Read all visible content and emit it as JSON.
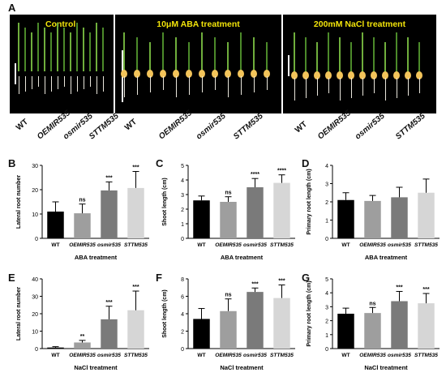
{
  "figure": {
    "panel_letters": [
      "A",
      "B",
      "C",
      "D",
      "E",
      "F",
      "G"
    ],
    "photo_titles": [
      "Control",
      "10μM ABA treatment",
      "200mM NaCl treatment"
    ],
    "genotypes": [
      "WT",
      "OEMIR535",
      "osmir535",
      "STTM535"
    ]
  },
  "colors": {
    "WT": "#000000",
    "OEMIR535": "#9e9e9e",
    "osmir535": "#7a7a7a",
    "STTM535": "#d6d6d6",
    "photo_title": "#f2e40a"
  },
  "chart_data": [
    {
      "panel": "B",
      "type": "bar",
      "categories": [
        "WT",
        "OEMIR535",
        "osmir535",
        "STTM535"
      ],
      "values": [
        11,
        10.3,
        19.7,
        20.7
      ],
      "errors": [
        4,
        3.8,
        3.5,
        6.8
      ],
      "significance": [
        "",
        "ns",
        "***",
        "***"
      ],
      "ylabel": "Lateral root number",
      "xlabel": "ABA treatment",
      "ylim": [
        0,
        30
      ],
      "yticks": [
        0,
        10,
        20,
        30
      ]
    },
    {
      "panel": "C",
      "type": "bar",
      "categories": [
        "WT",
        "OEMIR535",
        "osmir535",
        "STTM535"
      ],
      "values": [
        2.6,
        2.5,
        3.5,
        3.8
      ],
      "errors": [
        0.3,
        0.35,
        0.6,
        0.55
      ],
      "significance": [
        "",
        "ns",
        "****",
        "****"
      ],
      "ylabel": "Shoot length (cm)",
      "xlabel": "ABA treatment",
      "ylim": [
        0,
        5
      ],
      "yticks": [
        0,
        1,
        2,
        3,
        4,
        5
      ]
    },
    {
      "panel": "D",
      "type": "bar",
      "categories": [
        "WT",
        "OEMIR535",
        "osmir535",
        "STTM535"
      ],
      "values": [
        2.1,
        2.05,
        2.25,
        2.5
      ],
      "errors": [
        0.4,
        0.3,
        0.55,
        0.75
      ],
      "significance": [
        "",
        "",
        "",
        ""
      ],
      "ylabel": "Primary root length (cm)",
      "xlabel": "ABA treatment",
      "ylim": [
        0,
        4
      ],
      "yticks": [
        0,
        1,
        2,
        3,
        4
      ]
    },
    {
      "panel": "E",
      "type": "bar",
      "categories": [
        "WT",
        "OEMIR535",
        "osmir535",
        "STTM535"
      ],
      "values": [
        0.6,
        3.5,
        16.8,
        22
      ],
      "errors": [
        0.5,
        1.2,
        7.5,
        11
      ],
      "significance": [
        "",
        "**",
        "***",
        "***"
      ],
      "ylabel": "Lateral root number",
      "xlabel": "NaCl treatment",
      "ylim": [
        0,
        40
      ],
      "yticks": [
        0,
        10,
        20,
        30,
        40
      ]
    },
    {
      "panel": "F",
      "type": "bar",
      "categories": [
        "WT",
        "OEMIR535",
        "osmir535",
        "STTM535"
      ],
      "values": [
        3.4,
        4.3,
        6.5,
        5.8
      ],
      "errors": [
        1.2,
        1.4,
        0.45,
        1.5
      ],
      "significance": [
        "",
        "ns",
        "***",
        "***"
      ],
      "ylabel": "Shoot length (cm)",
      "xlabel": "NaCl treatment",
      "ylim": [
        0,
        8
      ],
      "yticks": [
        0,
        2,
        4,
        6,
        8
      ]
    },
    {
      "panel": "G",
      "type": "bar",
      "categories": [
        "WT",
        "OEMIR535",
        "osmir535",
        "STTM535"
      ],
      "values": [
        2.5,
        2.55,
        3.4,
        3.25
      ],
      "errors": [
        0.4,
        0.4,
        0.7,
        0.7
      ],
      "significance": [
        "",
        "ns",
        "***",
        "***"
      ],
      "ylabel": "Primary root length (cm)",
      "xlabel": "NaCl treatment",
      "ylim": [
        0,
        5
      ],
      "yticks": [
        0,
        1,
        2,
        3,
        4,
        5
      ]
    }
  ]
}
